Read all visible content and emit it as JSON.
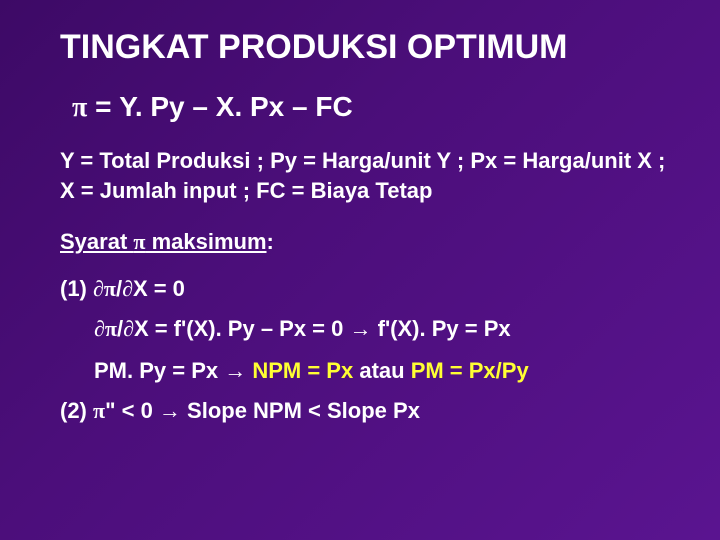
{
  "colors": {
    "background": "#4b0e7a",
    "text": "#ffffff",
    "highlight": "#ffff33"
  },
  "title": "TINGKAT PRODUKSI OPTIMUM",
  "equation": {
    "pi": "p",
    "rest": "  =  Y. Py – X. Px – FC"
  },
  "definitions": "Y = Total Produksi  ;           Py = Harga/unit Y   ;           Px = Harga/unit X   ;    X = Jumlah input   ;            FC = Biaya Tetap",
  "syarat_label_pre": "Syarat ",
  "syarat_pi": "p",
  "syarat_label_post": " maksimum",
  "syarat_colon": " :",
  "line1": {
    "prefix": "(1) ",
    "d1": "¶",
    "pi": "p",
    "mid": "/",
    "d2": "¶",
    "rest": "X = 0"
  },
  "line1b": {
    "d1": "¶",
    "pi": "p",
    "mid": "/",
    "d2": "¶",
    "lhs": "X = f'(X). Py – Px = 0  ",
    "arrow": "®",
    "rhs": "  f'(X). Py = Px"
  },
  "line_pm": {
    "lhs": "PM. Py = Px  ",
    "arrow": "®",
    "mid_yellow": "  NPM = Px ",
    "atau": " atau ",
    "rhs_yellow": " PM = Px/Py"
  },
  "line2": {
    "prefix": "(2) ",
    "pi": "p",
    "cond": "\" < 0 ",
    "arrow": "®",
    "rest": "  Slope NPM < Slope Px"
  }
}
